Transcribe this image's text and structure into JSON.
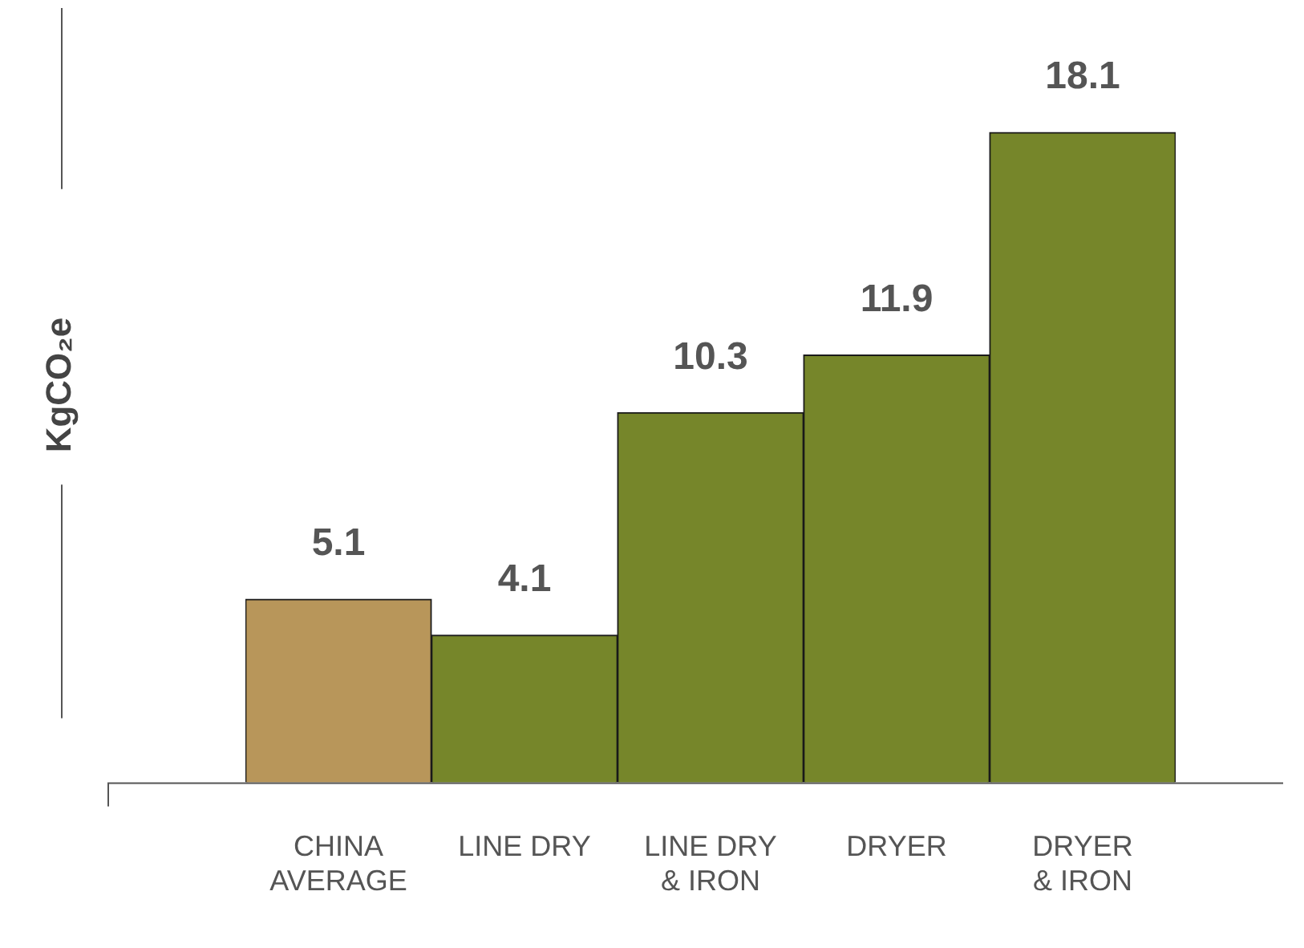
{
  "chart_data": {
    "type": "bar",
    "ylabel": "KgCO₂e",
    "categories": [
      "CHINA\nAVERAGE",
      "LINE DRY",
      "LINE DRY\n& IRON",
      "DRYER",
      "DRYER\n& IRON"
    ],
    "values": [
      5.1,
      4.1,
      10.3,
      11.9,
      18.1
    ],
    "colors": [
      "#b8965a",
      "#76862a",
      "#76862a",
      "#76862a",
      "#76862a"
    ],
    "data_labels": true,
    "grid": false,
    "legend": false
  }
}
